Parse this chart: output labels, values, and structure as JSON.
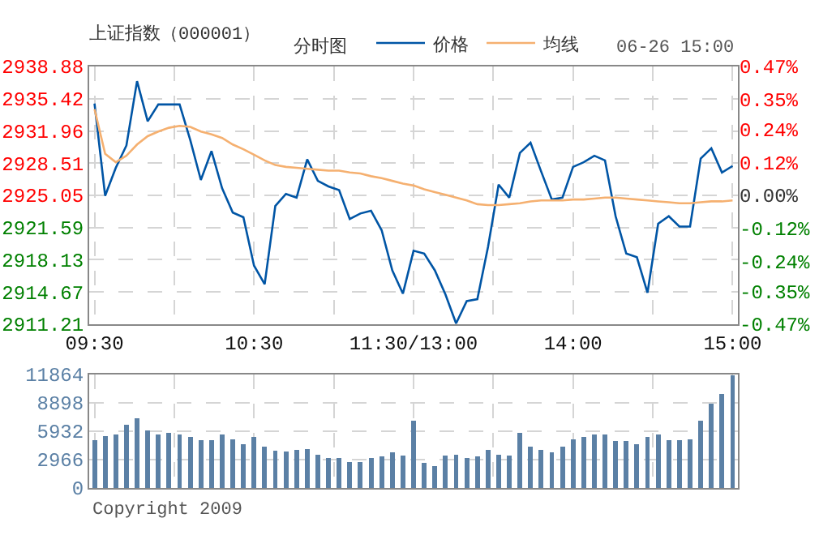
{
  "chart_data": [
    {
      "type": "line",
      "title": "上证指数（000001）",
      "subtitle": "分时图",
      "annotations": [
        "06-26 15:00"
      ],
      "legend": "top",
      "grid": true,
      "marker": "none",
      "line_style": "solid",
      "categories": [
        "09:30",
        null,
        null,
        null,
        null,
        null,
        null,
        null,
        null,
        null,
        null,
        null,
        null,
        null,
        null,
        "10:30",
        null,
        null,
        null,
        null,
        null,
        null,
        null,
        null,
        null,
        null,
        null,
        null,
        null,
        null,
        "11:30/13:00",
        null,
        null,
        null,
        null,
        null,
        null,
        null,
        null,
        null,
        null,
        null,
        null,
        null,
        null,
        "14:00",
        null,
        null,
        null,
        null,
        null,
        null,
        null,
        null,
        null,
        null,
        null,
        null,
        null,
        null,
        "15:00"
      ],
      "ylim": [
        2911.21,
        2938.88
      ],
      "yticks": [
        2911.21,
        2914.67,
        2918.13,
        2921.59,
        2925.05,
        2928.51,
        2931.96,
        2935.42,
        2938.88
      ],
      "y2lim": [
        -0.47,
        0.47
      ],
      "y2ticks": [
        {
          "value": -0.47,
          "label": "-0.47%"
        },
        {
          "value": -0.35,
          "label": "-0.35%"
        },
        {
          "value": -0.24,
          "label": "-0.24%"
        },
        {
          "value": -0.12,
          "label": "-0.12%"
        },
        {
          "value": 0,
          "label": "0.00%"
        },
        {
          "value": 0.12,
          "label": "0.12%"
        },
        {
          "value": 0.24,
          "label": "0.24%"
        },
        {
          "value": 0.35,
          "label": "0.35%"
        },
        {
          "value": 0.47,
          "label": "0.47%"
        }
      ],
      "series": [
        {
          "name": "价格",
          "color": "#0055a5",
          "values": [
            2934.9,
            2925.0,
            2928.0,
            2930.4,
            2937.3,
            2933.0,
            2934.8,
            2934.8,
            2934.8,
            2931.0,
            2926.7,
            2929.8,
            2925.8,
            2923.2,
            2922.7,
            2917.5,
            2915.5,
            2923.9,
            2925.2,
            2924.8,
            2928.9,
            2926.6,
            2926.0,
            2925.6,
            2922.5,
            2923.1,
            2923.4,
            2921.3,
            2917.0,
            2914.5,
            2919.1,
            2918.8,
            2917.0,
            2914.4,
            2911.3,
            2913.7,
            2913.9,
            2919.5,
            2926.2,
            2924.8,
            2929.6,
            2930.7,
            2927.6,
            2924.6,
            2924.8,
            2928.1,
            2928.6,
            2929.3,
            2928.8,
            2922.8,
            2918.8,
            2918.4,
            2914.6,
            2922.0,
            2922.8,
            2921.7,
            2921.7,
            2929.0,
            2930.1,
            2927.5,
            2928.2
          ]
        },
        {
          "name": "均线",
          "color": "#f5b070",
          "values": [
            2934.3,
            2929.5,
            2928.6,
            2929.3,
            2930.5,
            2931.4,
            2931.9,
            2932.3,
            2932.5,
            2932.4,
            2931.9,
            2931.6,
            2931.2,
            2930.5,
            2930.0,
            2929.4,
            2928.8,
            2928.3,
            2928.1,
            2928.0,
            2927.9,
            2927.8,
            2927.7,
            2927.7,
            2927.5,
            2927.4,
            2927.1,
            2926.9,
            2926.6,
            2926.3,
            2926.1,
            2925.7,
            2925.4,
            2925.1,
            2924.8,
            2924.5,
            2924.1,
            2924.0,
            2924.0,
            2924.1,
            2924.2,
            2924.4,
            2924.5,
            2924.5,
            2924.5,
            2924.6,
            2924.6,
            2924.7,
            2924.8,
            2924.8,
            2924.7,
            2924.6,
            2924.5,
            2924.4,
            2924.3,
            2924.2,
            2924.2,
            2924.3,
            2924.4,
            2924.4,
            2924.5
          ]
        }
      ]
    },
    {
      "type": "bar",
      "grid": true,
      "tick_labels": "y",
      "annotations": [
        "Copyright 2009"
      ],
      "categories": [
        null,
        null,
        null,
        null,
        null,
        null,
        null,
        null,
        null,
        null,
        null,
        null,
        null,
        null,
        null,
        null,
        null,
        null,
        null,
        null,
        null,
        null,
        null,
        null,
        null,
        null,
        null,
        null,
        null,
        null,
        null,
        null,
        null,
        null,
        null,
        null,
        null,
        null,
        null,
        null,
        null,
        null,
        null,
        null,
        null,
        null,
        null,
        null,
        null,
        null,
        null,
        null,
        null,
        null,
        null,
        null,
        null,
        null,
        null,
        null,
        null
      ],
      "ylim": [
        0,
        11864
      ],
      "yticks": [
        0,
        2966,
        5932,
        8898,
        11864
      ],
      "color": "#5b80a5",
      "values": [
        5000,
        5400,
        5600,
        6600,
        7300,
        6000,
        5600,
        5800,
        5600,
        5300,
        5000,
        5000,
        5600,
        5100,
        4600,
        5300,
        4300,
        3900,
        3800,
        4000,
        4100,
        3500,
        3100,
        3100,
        2700,
        2700,
        3100,
        3300,
        3700,
        3400,
        7000,
        2600,
        2300,
        3400,
        3500,
        3100,
        3300,
        4000,
        3500,
        3400,
        5800,
        4300,
        4000,
        3700,
        4300,
        5100,
        5300,
        5600,
        5600,
        4900,
        4900,
        4600,
        5300,
        5600,
        5000,
        5000,
        5100,
        7000,
        8800,
        9800,
        11800
      ]
    }
  ]
}
